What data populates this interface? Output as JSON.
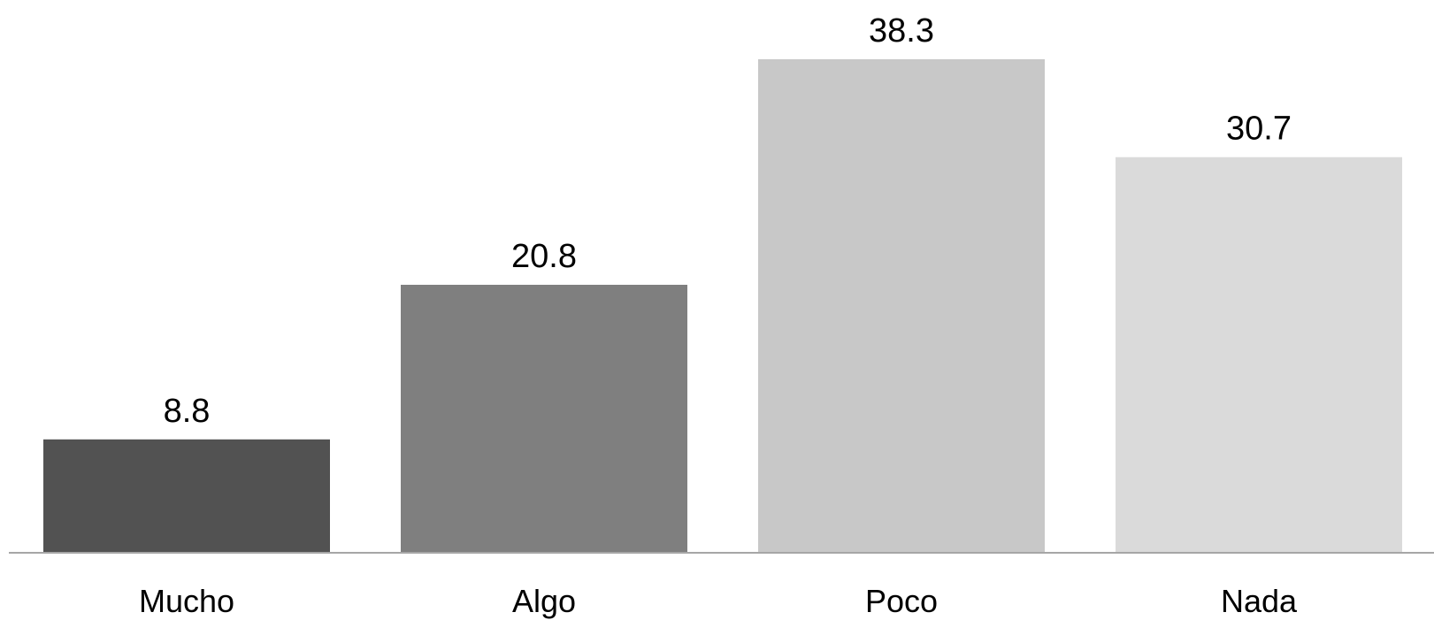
{
  "chart_data": {
    "type": "bar",
    "categories": [
      "Mucho",
      "Algo",
      "Poco",
      "Nada"
    ],
    "values": [
      8.8,
      20.8,
      38.3,
      30.7
    ],
    "value_labels": [
      "8.8",
      "20.8",
      "38.3",
      "30.7"
    ],
    "bar_colors": [
      "#525252",
      "#7f7f7f",
      "#c8c8c8",
      "#dadada"
    ],
    "axis_color": "#a6a6a6",
    "title": "",
    "xlabel": "",
    "ylabel": "",
    "ylim": [
      0,
      38.3
    ],
    "grid": false,
    "legend": "none"
  }
}
